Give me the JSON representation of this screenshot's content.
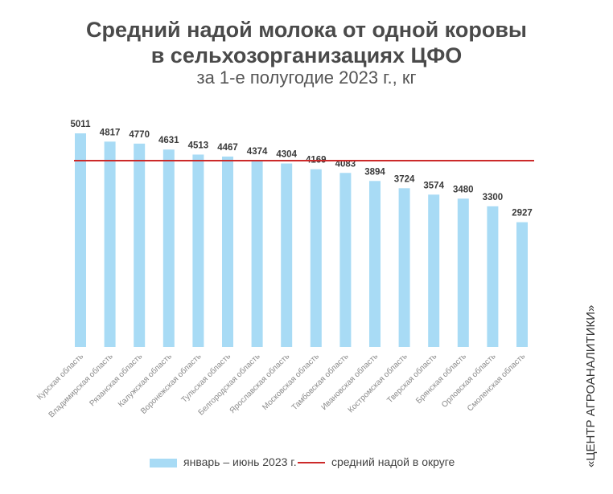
{
  "title_line1": "Средний надой молока от одной коровы",
  "title_line2": "в сельхозорганизациях ЦФО",
  "subtitle": "за 1-е полугодие 2023 г., кг",
  "watermark": "«ЦЕНТР АГРОАНАЛИТИКИ»",
  "legend": {
    "bars": "январь – июнь 2023 г.",
    "line": "средний надой в округе"
  },
  "colors": {
    "bar": "#a8dbf5",
    "line": "#cc2a2a",
    "text": "#4a4a4a"
  },
  "chart_data": {
    "type": "bar",
    "categories": [
      "Курская область",
      "Владимирская область",
      "Рязанская область",
      "Калужская область",
      "Воронежская область",
      "Тульская область",
      "Белгородская область",
      "Ярославская область",
      "Московская область",
      "Тамбовская область",
      "Ивановская область",
      "Костромская область",
      "Тверская область",
      "Брянская область",
      "Орловская область",
      "Смоленская область"
    ],
    "series": [
      {
        "name": "январь – июнь 2023 г.",
        "values": [
          5011,
          4817,
          4770,
          4631,
          4513,
          4467,
          4374,
          4304,
          4169,
          4083,
          3894,
          3724,
          3574,
          3480,
          3300,
          2927
        ]
      }
    ],
    "reference_line": {
      "name": "средний надой в округе",
      "value": 4370
    },
    "ylim": [
      0,
      5011
    ],
    "grid": false,
    "legend_position": "bottom"
  }
}
